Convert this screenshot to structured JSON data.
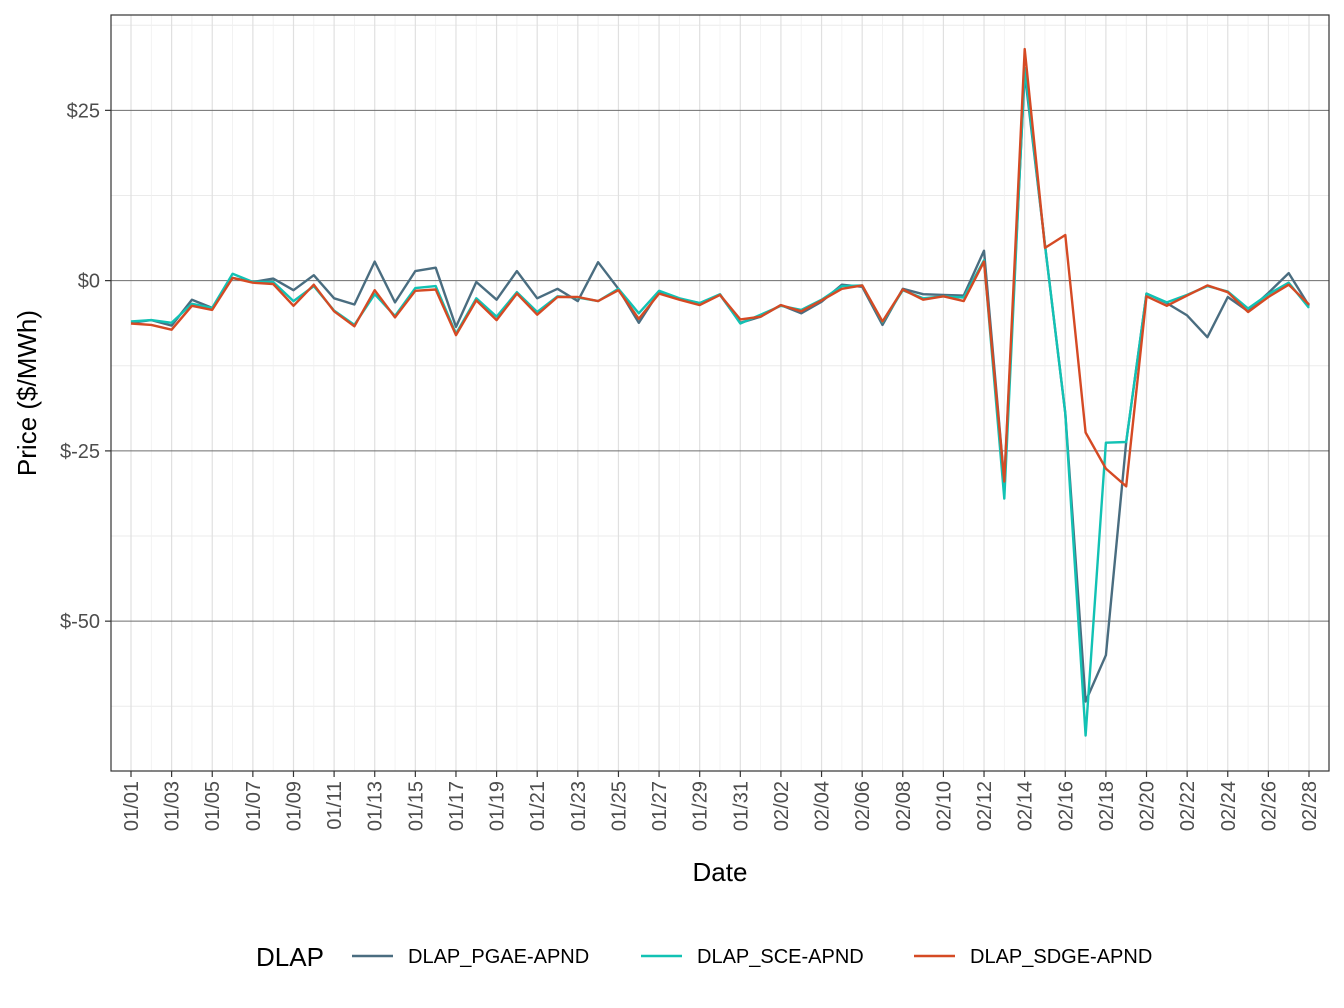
{
  "chart_data": {
    "type": "line",
    "xlabel": "Date",
    "ylabel": "Price ($/MWh)",
    "ylim": [
      -72,
      39
    ],
    "y_major_ticks": [
      25,
      0,
      -25,
      -50
    ],
    "y_tick_labels": [
      "$25",
      "$0",
      "$-25",
      "$-50"
    ],
    "y_minor_ticks": [
      37.5,
      12.5,
      -12.5,
      -37.5,
      -62.5
    ],
    "x_tick_labels": [
      "01/01",
      "01/03",
      "01/05",
      "01/07",
      "01/09",
      "01/11",
      "01/13",
      "01/15",
      "01/17",
      "01/19",
      "01/21",
      "01/23",
      "01/25",
      "01/27",
      "01/29",
      "01/31",
      "02/02",
      "02/04",
      "02/06",
      "02/08",
      "02/10",
      "02/12",
      "02/14",
      "02/16",
      "02/18",
      "02/20",
      "02/22",
      "02/24",
      "02/26",
      "02/28"
    ],
    "x": [
      "01/01",
      "01/02",
      "01/03",
      "01/04",
      "01/05",
      "01/06",
      "01/07",
      "01/08",
      "01/09",
      "01/10",
      "01/11",
      "01/12",
      "01/13",
      "01/14",
      "01/15",
      "01/16",
      "01/17",
      "01/18",
      "01/19",
      "01/20",
      "01/21",
      "01/22",
      "01/23",
      "01/24",
      "01/25",
      "01/26",
      "01/27",
      "01/28",
      "01/29",
      "01/30",
      "01/31",
      "02/01",
      "02/02",
      "02/03",
      "02/04",
      "02/05",
      "02/06",
      "02/07",
      "02/08",
      "02/09",
      "02/10",
      "02/11",
      "02/12",
      "02/13",
      "02/14",
      "02/15",
      "02/16",
      "02/17",
      "02/18",
      "02/19",
      "02/20",
      "02/21",
      "02/22",
      "02/23",
      "02/24",
      "02/25",
      "02/26",
      "02/27",
      "02/28"
    ],
    "grid": true,
    "legend_title": "DLAP",
    "legend_position": "bottom",
    "series": [
      {
        "name": "DLAP_PGAE-APND",
        "color": "#4a6d80",
        "values": [
          -6.2,
          -5.8,
          -6.6,
          -2.8,
          -4.0,
          0.4,
          -0.2,
          0.3,
          -1.4,
          0.8,
          -2.6,
          -3.5,
          2.8,
          -3.2,
          1.4,
          1.9,
          -6.8,
          -0.2,
          -2.8,
          1.4,
          -2.6,
          -1.2,
          -3.0,
          2.7,
          -1.2,
          -6.2,
          -1.6,
          -2.7,
          -3.3,
          -2.1,
          -6.2,
          -5.3,
          -3.6,
          -4.8,
          -3.1,
          -0.6,
          -0.9,
          -6.5,
          -1.2,
          -2.0,
          -2.1,
          -2.2,
          4.4,
          -29.5,
          30.5,
          5.2,
          -19.5,
          -61.8,
          -55.0,
          -23.7,
          -1.9,
          -3.3,
          -5.1,
          -8.3,
          -2.4,
          -4.5,
          -1.8,
          1.1,
          -3.7
        ]
      },
      {
        "name": "DLAP_SCE-APND",
        "color": "#12c2b4",
        "values": [
          -6.0,
          -5.8,
          -6.2,
          -3.4,
          -4.0,
          1.0,
          -0.2,
          -0.2,
          -3.0,
          -0.8,
          -4.4,
          -6.5,
          -2.0,
          -5.2,
          -1.1,
          -0.8,
          -7.8,
          -2.6,
          -5.3,
          -1.7,
          -4.6,
          -2.3,
          -2.5,
          -3.0,
          -1.2,
          -4.8,
          -1.5,
          -2.6,
          -3.3,
          -2.0,
          -6.3,
          -5.0,
          -3.7,
          -4.3,
          -2.8,
          -0.8,
          -0.7,
          -6.1,
          -1.4,
          -2.6,
          -2.3,
          -2.5,
          3.0,
          -32.0,
          31.2,
          5.2,
          -19.5,
          -66.8,
          -23.8,
          -23.7,
          -1.9,
          -3.2,
          -2.1,
          -0.8,
          -1.6,
          -4.1,
          -2.0,
          -0.3,
          -4.0
        ]
      },
      {
        "name": "DLAP_SDGE-APND",
        "color": "#d54a24",
        "values": [
          -6.3,
          -6.5,
          -7.2,
          -3.7,
          -4.3,
          0.4,
          -0.3,
          -0.5,
          -3.7,
          -0.6,
          -4.5,
          -6.7,
          -1.4,
          -5.4,
          -1.5,
          -1.3,
          -8.0,
          -2.9,
          -5.8,
          -1.9,
          -5.0,
          -2.4,
          -2.4,
          -3.0,
          -1.4,
          -5.6,
          -1.9,
          -2.8,
          -3.6,
          -2.1,
          -5.7,
          -5.3,
          -3.6,
          -4.5,
          -2.9,
          -1.2,
          -0.7,
          -6.0,
          -1.3,
          -2.8,
          -2.3,
          -3.0,
          2.8,
          -29.5,
          34.0,
          4.8,
          6.7,
          -22.3,
          -27.6,
          -30.2,
          -2.3,
          -3.7,
          -2.2,
          -0.7,
          -1.7,
          -4.6,
          -2.4,
          -0.6,
          -3.5
        ]
      }
    ]
  }
}
